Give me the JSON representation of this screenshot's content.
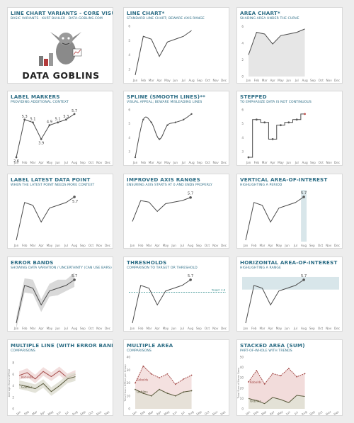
{
  "colors": {
    "title": "#2e6e86",
    "line": "#4a4a4a",
    "area": "#e6e6e6",
    "band": "#d9d9d9",
    "marker": "#555555",
    "highlight": "#d8e6ea",
    "threshold": "#2e8b8b",
    "kobolds": "#a44a48",
    "goblins": "#5a5a3c"
  },
  "header": {
    "title": "LINE CHART VARIANTS - CORE VISUALS",
    "subtitle": "BASIC VARIANTS  ·  KURT BUHLER  ·  DATA-GOBLINS.COM",
    "logo_text": "DATA GOBLINS"
  },
  "months": [
    "Jan",
    "Feb",
    "Mar",
    "Apr",
    "May",
    "Jun",
    "Jul",
    "Aug",
    "Sep",
    "Oct",
    "Nov",
    "Dec"
  ],
  "charts": [
    {
      "id": "line",
      "title": "LINE CHART*",
      "subtitle": "STANDARD LINE CHART; BEWARE AXIS RANGE",
      "type": "line",
      "yticks": [
        "6",
        "5",
        "4",
        "3"
      ]
    },
    {
      "id": "area",
      "title": "AREA CHART*",
      "subtitle": "SHADING AREA UNDER THE CURVE",
      "type": "area",
      "yticks": [
        "6",
        "4",
        "2",
        "0"
      ]
    },
    {
      "id": "markers",
      "title": "LABEL MARKERS",
      "subtitle": "PROVIDING ADDITIONAL CONTEXT",
      "type": "markers",
      "labels": [
        "2.6",
        "5.3",
        "5.1",
        "3.9",
        "4.9",
        "5.1",
        "5.3",
        "5.7"
      ]
    },
    {
      "id": "spline",
      "title": "SPLINE (SMOOTH LINES)**",
      "subtitle": "VISUAL APPEAL; BEWARE MISLEADING LINES",
      "type": "spline",
      "yticks": [
        "6",
        "5",
        "4",
        "3"
      ]
    },
    {
      "id": "stepped",
      "title": "STEPPED",
      "subtitle": "TO EMPHASIZE DATA IS NOT CONTINUOUS",
      "type": "stepped",
      "yticks": [
        "6",
        "5",
        "4",
        "3"
      ]
    },
    {
      "id": "latest",
      "title": "LABEL LATEST DATA POINT",
      "subtitle": "WHEN THE LATEST POINT NEEDS MORE CONTEXT",
      "type": "latest",
      "latest_label": "5.7"
    },
    {
      "id": "axisrange",
      "title": "IMPROVED AXIS RANGES",
      "subtitle": "ENSURING AXIS STARTS AT 0 AND ENDS PROPERLY",
      "type": "axisrange",
      "latest_label": "5.7"
    },
    {
      "id": "vinterest",
      "title": "VERTICAL AREA-OF-INTEREST",
      "subtitle": "HIGHLIGHTING A PERIOD",
      "type": "vinterest",
      "latest_label": "5.7"
    },
    {
      "id": "errorbands",
      "title": "ERROR BANDS",
      "subtitle": "SHOWING DATA VARIATION / UNCERTAINTY (CAN USE BARS)",
      "type": "errorbands",
      "latest_label": "5.7"
    },
    {
      "id": "thresholds",
      "title": "THRESHOLDS",
      "subtitle": "COMPARISON TO TARGET OR THRESHOLD",
      "type": "thresholds",
      "latest_label": "5.7",
      "threshold_label": "Target: 4.8",
      "threshold": 4.8
    },
    {
      "id": "hinterest",
      "title": "HORIZONTAL AREA-OF-INTEREST",
      "subtitle": "HIGHLIGHTING A RANGE",
      "type": "hinterest",
      "latest_label": "5.7"
    },
    {
      "id": "multiline",
      "title": "MULTIPLE LINE (WITH ERROR BANDS)",
      "subtitle": "COMPARISONS",
      "type": "multiline",
      "ylabel": "Average Hours Offline",
      "yticks": [
        "8",
        "6",
        "4",
        "2",
        "0"
      ]
    },
    {
      "id": "multiarea",
      "title": "MULTIPLE AREA",
      "subtitle": "COMPARISONS",
      "type": "multiarea",
      "ylabel": "Total Hours Offline per Group",
      "yticks": [
        "40",
        "30",
        "20",
        "10",
        "0"
      ]
    },
    {
      "id": "stacked",
      "title": "STACKED AREA (SUM)",
      "subtitle": "PART-OF-WHOLE WITH TRENDS",
      "type": "stacked",
      "ylabel": "Total Sum of Items Seen",
      "yticks": [
        "50",
        "40",
        "30",
        "20",
        "10",
        "0"
      ]
    }
  ],
  "chart_data": [
    {
      "type": "line",
      "x": [
        "Jan",
        "Feb",
        "Mar",
        "Apr",
        "May",
        "Jun",
        "Jul",
        "Aug"
      ],
      "values": [
        2.6,
        5.3,
        5.1,
        3.9,
        4.9,
        5.1,
        5.3,
        5.7
      ],
      "ylim": [
        2.5,
        6
      ]
    },
    {
      "type": "area",
      "x": [
        "Jan",
        "Feb",
        "Mar",
        "Apr",
        "May",
        "Jun",
        "Jul",
        "Aug"
      ],
      "values": [
        2.6,
        5.3,
        5.1,
        3.9,
        4.9,
        5.1,
        5.3,
        5.7
      ],
      "ylim": [
        0,
        6
      ]
    },
    {
      "type": "line",
      "variant": "stepped",
      "x": [
        "Jan",
        "Feb",
        "Mar",
        "Apr",
        "May",
        "Jun",
        "Jul",
        "Aug"
      ],
      "values": [
        2.6,
        5.3,
        5.1,
        3.9,
        4.9,
        5.1,
        5.3,
        5.7
      ]
    },
    {
      "type": "line",
      "variant": "threshold",
      "threshold": 4.8
    },
    {
      "type": "line",
      "variant": "multi",
      "series": [
        {
          "name": "Kobolds",
          "values": [
            5.8,
            6.3,
            5.2,
            6.5,
            5.6,
            6.6,
            5.4,
            6.0
          ]
        },
        {
          "name": "Goblins",
          "values": [
            4.2,
            3.9,
            3.5,
            4.4,
            3.0,
            4.0,
            5.2,
            5.6
          ]
        }
      ]
    },
    {
      "type": "area",
      "variant": "multi",
      "series": [
        {
          "name": "Kobolds",
          "values": [
            20,
            33,
            27,
            24,
            27,
            19,
            23,
            26
          ]
        },
        {
          "name": "Goblins",
          "values": [
            15,
            12,
            10,
            15,
            12,
            10,
            13,
            14
          ]
        }
      ]
    },
    {
      "type": "area",
      "variant": "stacked",
      "series": [
        {
          "name": "Goblins",
          "values": [
            10,
            8,
            5,
            11,
            9,
            6,
            13,
            12
          ]
        },
        {
          "name": "Kobolds",
          "values": [
            26,
            37,
            24,
            34,
            32,
            39,
            31,
            34
          ]
        }
      ]
    }
  ]
}
